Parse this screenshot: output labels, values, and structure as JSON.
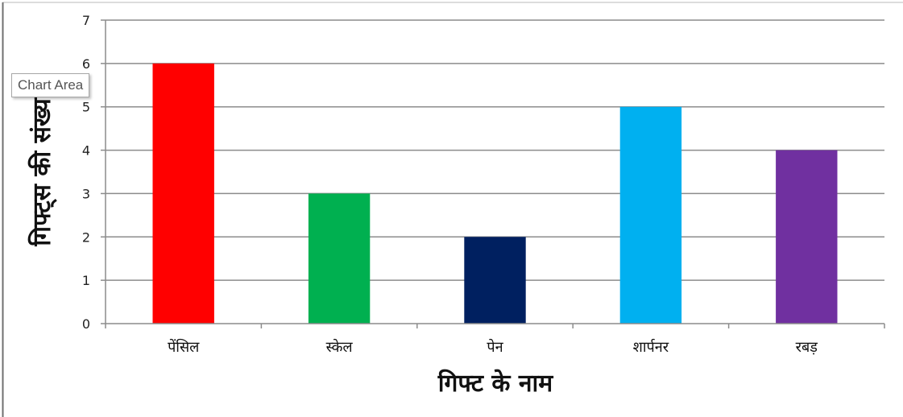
{
  "tooltip": {
    "label": "Chart Area"
  },
  "colors": {
    "pencil": "#ff0000",
    "scale": "#00b050",
    "pen": "#002060",
    "sharpener": "#00b0f0",
    "eraser": "#7030a0",
    "grid": "#8c8c8c"
  },
  "chart_data": {
    "type": "bar",
    "categories": [
      "पेंसिल",
      "स्केल",
      "पेन",
      "शार्पनर",
      "रबड़"
    ],
    "values": [
      6,
      3,
      2,
      5,
      4
    ],
    "colors": [
      "#ff0000",
      "#00b050",
      "#002060",
      "#00b0f0",
      "#7030a0"
    ],
    "title": "",
    "xlabel": "गिफ्ट के नाम",
    "ylabel": "गिफ्ट्स की संख्या",
    "ylim": [
      0,
      7
    ],
    "yticks": [
      0,
      1,
      2,
      3,
      4,
      5,
      6,
      7
    ],
    "grid": true,
    "legend": "none"
  }
}
